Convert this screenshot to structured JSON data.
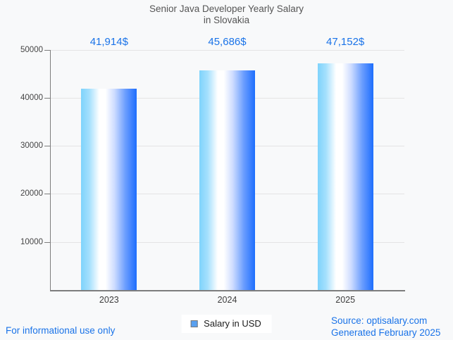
{
  "title": {
    "line1": "Senior Java Developer Yearly Salary",
    "line2": "in Slovakia"
  },
  "chart_data": {
    "type": "bar",
    "title": "Senior Java Developer Yearly Salary in Slovakia",
    "categories": [
      "2023",
      "2024",
      "2025"
    ],
    "values": [
      41914,
      45686,
      47152
    ],
    "bar_labels": [
      "41,914$",
      "45,686$",
      "47,152$"
    ],
    "series_name": "Salary in USD",
    "xlabel": "",
    "ylabel": "",
    "ylim": [
      0,
      50000
    ],
    "yticks": [
      10000,
      20000,
      30000,
      40000,
      50000
    ],
    "ytick_labels": [
      "10000",
      "20000",
      "30000",
      "40000",
      "50000"
    ],
    "grid": true,
    "legend_position": "bottom-center",
    "bar_color_gradient": [
      "#7ed3fc",
      "#ffffff",
      "#1e6efd"
    ]
  },
  "legend": {
    "label": "Salary in USD",
    "swatch_color": "#58a0f0"
  },
  "footer": {
    "left": "For informational use only",
    "source": "Source: optisalary.com",
    "generated": "Generated February 2025"
  },
  "colors": {
    "background": "#f8f9fa",
    "accent_blue": "#1a73e8",
    "title_gray": "#555555",
    "axis_gray": "#7d7d7d",
    "gridline_gray": "#e4e4e4"
  }
}
